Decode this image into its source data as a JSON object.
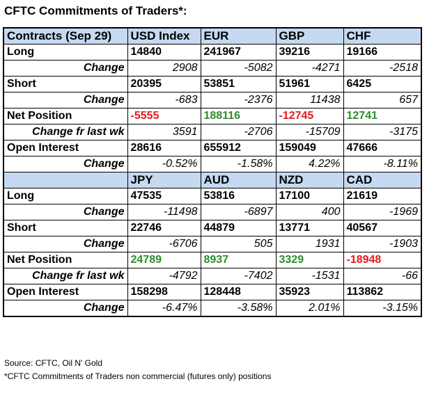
{
  "title": "CFTC Commitments of Traders*:",
  "colors": {
    "header_bg": "#c5d9f1",
    "negative": "#e31a1c",
    "positive": "#2e8b2e"
  },
  "table1": {
    "header": [
      "Contracts (Sep 29)",
      "USD Index",
      "EUR",
      "GBP",
      "CHF"
    ],
    "rows": [
      {
        "label": "Long",
        "style": "big",
        "values": [
          "14840",
          "241967",
          "39216",
          "19166"
        ]
      },
      {
        "label": "Change",
        "style": "change",
        "values": [
          "2908",
          "-5082",
          "-4271",
          "-2518"
        ]
      },
      {
        "label": "Short",
        "style": "big",
        "values": [
          "20395",
          "53851",
          "51961",
          "6425"
        ]
      },
      {
        "label": "Change",
        "style": "change",
        "values": [
          "-683",
          "-2376",
          "11438",
          "657"
        ]
      },
      {
        "label": "Net Position",
        "style": "net",
        "values": [
          "-5555",
          "188116",
          "-12745",
          "12741"
        ],
        "colors": [
          "red",
          "green",
          "red",
          "green"
        ]
      },
      {
        "label": "Change fr last wk",
        "style": "change",
        "values": [
          "3591",
          "-2706",
          "-15709",
          "-3175"
        ]
      },
      {
        "label": "Open Interest",
        "style": "big",
        "values": [
          "28616",
          "655912",
          "159049",
          "47666"
        ]
      },
      {
        "label": "Change",
        "style": "change",
        "values": [
          "-0.52%",
          "-1.58%",
          "4.22%",
          "-8.11%"
        ]
      }
    ]
  },
  "table2": {
    "header": [
      "",
      "JPY",
      "AUD",
      "NZD",
      "CAD"
    ],
    "rows": [
      {
        "label": "Long",
        "style": "big",
        "values": [
          "47535",
          "53816",
          "17100",
          "21619"
        ]
      },
      {
        "label": "Change",
        "style": "change",
        "values": [
          "-11498",
          "-6897",
          "400",
          "-1969"
        ]
      },
      {
        "label": "Short",
        "style": "big",
        "values": [
          "22746",
          "44879",
          "13771",
          "40567"
        ]
      },
      {
        "label": "Change",
        "style": "change",
        "values": [
          "-6706",
          "505",
          "1931",
          "-1903"
        ]
      },
      {
        "label": "Net Position",
        "style": "net",
        "values": [
          "24789",
          "8937",
          "3329",
          "-18948"
        ],
        "colors": [
          "green",
          "green",
          "green",
          "red"
        ]
      },
      {
        "label": "Change fr last wk",
        "style": "change",
        "values": [
          "-4792",
          "-7402",
          "-1531",
          "-66"
        ]
      },
      {
        "label": "Open Interest",
        "style": "big",
        "values": [
          "158298",
          "128448",
          "35923",
          "113862"
        ]
      },
      {
        "label": "Change",
        "style": "change",
        "values": [
          "-6.47%",
          "-3.58%",
          "2.01%",
          "-3.15%"
        ]
      }
    ]
  },
  "source": "Source: CFTC, Oil N' Gold",
  "footnote": "*CFTC Commitments of Traders non commercial (futures only) positions"
}
